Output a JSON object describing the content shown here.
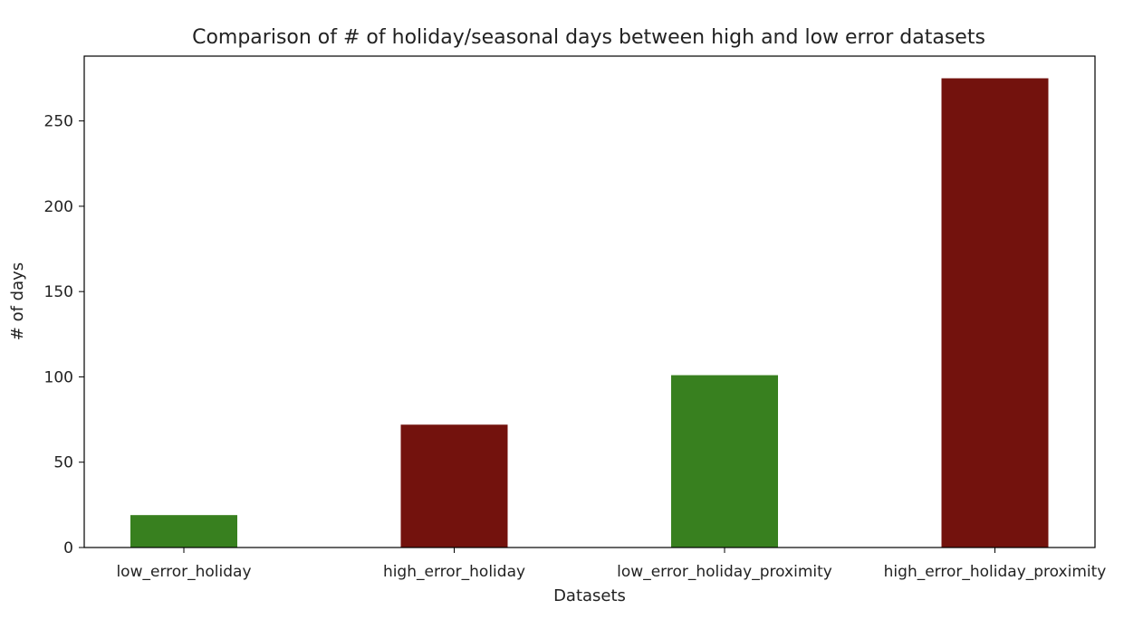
{
  "chart_data": {
    "type": "bar",
    "title": "Comparison of # of holiday/seasonal days between high and low error datasets",
    "xlabel": "Datasets",
    "ylabel": "# of days",
    "categories": [
      "low_error_holiday",
      "high_error_holiday",
      "low_error_holiday_proximity",
      "high_error_holiday_proximity"
    ],
    "values": [
      19,
      72,
      101,
      275
    ],
    "bar_colors": [
      "#38801f",
      "#73120d",
      "#38801f",
      "#73120d"
    ],
    "ylim": [
      0,
      288
    ],
    "yticks": [
      0,
      50,
      100,
      150,
      200,
      250
    ],
    "grid": false
  }
}
